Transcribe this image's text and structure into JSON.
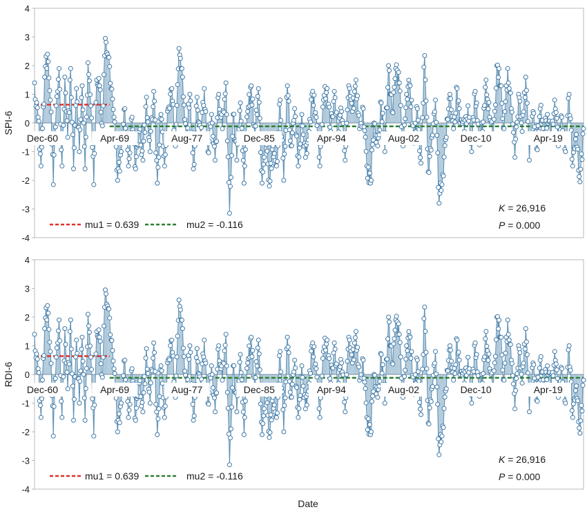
{
  "figure": {
    "xlabel": "Date"
  },
  "colors": {
    "series_line": "#5b8fb3",
    "marker_edge": "#3f78a6",
    "marker_fill": "#ffffff",
    "mu1": "#e0302a",
    "mu2": "#2e7d32",
    "zero_line": "#9aa8b0",
    "frame": "#b8b8b8",
    "text": "#1a1a1a"
  },
  "chart_data": [
    {
      "type": "line",
      "ylabel": "SPI-6",
      "ylim": [
        -4,
        4
      ],
      "yticks": [
        "4",
        "3",
        "2",
        "1",
        "0",
        "-1",
        "-2",
        "-3",
        "-4"
      ],
      "xticks": [
        {
          "label": "Dec-60",
          "month": 11
        },
        {
          "label": "Apr-69",
          "month": 111
        },
        {
          "label": "Aug-77",
          "month": 211
        },
        {
          "label": "Dec-85",
          "month": 311
        },
        {
          "label": "Apr-94",
          "month": 411
        },
        {
          "label": "Aug-02",
          "month": 511
        },
        {
          "label": "Dec-10",
          "month": 611
        },
        {
          "label": "Apr-19",
          "month": 711
        }
      ],
      "x_range_months": [
        0,
        760
      ],
      "mu1": {
        "label": "mu1 = 0.639",
        "value": 0.639,
        "start_month": 0,
        "end_month": 104
      },
      "mu2": {
        "label": "mu2 = -0.116",
        "value": -0.116,
        "start_month": 104,
        "end_month": 760
      },
      "stats": {
        "K_label": "K",
        "K_value": " = 26,916",
        "P_label": "P",
        "P_value": " = 0.000"
      },
      "anchors": [
        [
          0,
          1.4
        ],
        [
          5,
          0.2
        ],
        [
          9,
          -1.5
        ],
        [
          14,
          1.6
        ],
        [
          18,
          2.4
        ],
        [
          22,
          0.8
        ],
        [
          26,
          -2.15
        ],
        [
          30,
          0.6
        ],
        [
          34,
          1.9
        ],
        [
          38,
          -1.5
        ],
        [
          42,
          1.6
        ],
        [
          46,
          -0.5
        ],
        [
          50,
          1.9
        ],
        [
          54,
          -1.6
        ],
        [
          58,
          1.2
        ],
        [
          62,
          -1.0
        ],
        [
          66,
          1.3
        ],
        [
          70,
          -1.6
        ],
        [
          74,
          2.1
        ],
        [
          78,
          0.6
        ],
        [
          82,
          -2.15
        ],
        [
          86,
          1.5
        ],
        [
          90,
          1.3
        ],
        [
          94,
          -0.1
        ],
        [
          98,
          2.95
        ],
        [
          102,
          2.3
        ],
        [
          106,
          1.2
        ],
        [
          110,
          0.2
        ],
        [
          115,
          -2.0
        ],
        [
          120,
          -1.0
        ],
        [
          125,
          0.5
        ],
        [
          130,
          -1.5
        ],
        [
          135,
          0.2
        ],
        [
          140,
          -1.6
        ],
        [
          145,
          -0.3
        ],
        [
          150,
          -1.3
        ],
        [
          155,
          0.9
        ],
        [
          160,
          -1.0
        ],
        [
          165,
          1.1
        ],
        [
          170,
          -2.1
        ],
        [
          175,
          0.3
        ],
        [
          180,
          -1.5
        ],
        [
          185,
          0.5
        ],
        [
          190,
          1.2
        ],
        [
          195,
          -0.8
        ],
        [
          200,
          2.6
        ],
        [
          205,
          1.6
        ],
        [
          210,
          -0.5
        ],
        [
          215,
          1.0
        ],
        [
          220,
          -1.6
        ],
        [
          225,
          0.9
        ],
        [
          230,
          -0.4
        ],
        [
          235,
          1.2
        ],
        [
          240,
          -1.0
        ],
        [
          245,
          0.3
        ],
        [
          250,
          -1.3
        ],
        [
          255,
          1.0
        ],
        [
          260,
          -0.2
        ],
        [
          265,
          1.4
        ],
        [
          270,
          -3.15
        ],
        [
          275,
          0.3
        ],
        [
          280,
          -1.3
        ],
        [
          285,
          0.7
        ],
        [
          290,
          -2.1
        ],
        [
          295,
          0.4
        ],
        [
          300,
          1.3
        ],
        [
          305,
          -0.5
        ],
        [
          310,
          1.2
        ],
        [
          315,
          -2.1
        ],
        [
          320,
          -0.4
        ],
        [
          325,
          -2.2
        ],
        [
          330,
          -0.8
        ],
        [
          335,
          -1.5
        ],
        [
          340,
          0.8
        ],
        [
          345,
          -2.0
        ],
        [
          350,
          1.3
        ],
        [
          355,
          -0.8
        ],
        [
          360,
          0.5
        ],
        [
          365,
          -1.5
        ],
        [
          370,
          0.3
        ],
        [
          375,
          -1.2
        ],
        [
          380,
          -0.3
        ],
        [
          385,
          1.1
        ],
        [
          390,
          0.2
        ],
        [
          395,
          -1.5
        ],
        [
          400,
          0.8
        ],
        [
          405,
          1.2
        ],
        [
          410,
          -0.3
        ],
        [
          415,
          1.1
        ],
        [
          420,
          -0.5
        ],
        [
          425,
          0.4
        ],
        [
          430,
          -1.3
        ],
        [
          435,
          1.3
        ],
        [
          440,
          0.4
        ],
        [
          445,
          1.5
        ],
        [
          450,
          -0.2
        ],
        [
          455,
          0.5
        ],
        [
          460,
          -1.5
        ],
        [
          465,
          -2.1
        ],
        [
          470,
          0.0
        ],
        [
          475,
          -0.8
        ],
        [
          480,
          0.7
        ],
        [
          485,
          -1.0
        ],
        [
          490,
          2.0
        ],
        [
          495,
          0.4
        ],
        [
          500,
          1.9
        ],
        [
          505,
          1.4
        ],
        [
          510,
          -0.8
        ],
        [
          515,
          1.0
        ],
        [
          520,
          1.3
        ],
        [
          525,
          -0.7
        ],
        [
          530,
          0.5
        ],
        [
          535,
          -1.4
        ],
        [
          540,
          2.35
        ],
        [
          545,
          -1.7
        ],
        [
          550,
          -0.5
        ],
        [
          555,
          0.8
        ],
        [
          560,
          -2.8
        ],
        [
          565,
          -1.8
        ],
        [
          570,
          -0.5
        ],
        [
          575,
          1.0
        ],
        [
          580,
          -0.2
        ],
        [
          585,
          1.2
        ],
        [
          590,
          0.1
        ],
        [
          595,
          -0.3
        ],
        [
          600,
          0.6
        ],
        [
          605,
          -1.0
        ],
        [
          610,
          1.1
        ],
        [
          615,
          -0.5
        ],
        [
          620,
          -0.3
        ],
        [
          625,
          1.5
        ],
        [
          630,
          0.2
        ],
        [
          635,
          -0.6
        ],
        [
          640,
          2.0
        ],
        [
          645,
          1.3
        ],
        [
          650,
          -0.2
        ],
        [
          655,
          1.9
        ],
        [
          660,
          0.5
        ],
        [
          665,
          -1.2
        ],
        [
          670,
          1.0
        ],
        [
          675,
          -0.3
        ],
        [
          680,
          1.6
        ],
        [
          685,
          -1.3
        ],
        [
          690,
          0.4
        ],
        [
          695,
          -0.9
        ],
        [
          700,
          0.5
        ],
        [
          705,
          -0.4
        ],
        [
          710,
          0.3
        ],
        [
          715,
          -0.6
        ],
        [
          720,
          0.8
        ],
        [
          725,
          -0.8
        ],
        [
          730,
          0.2
        ],
        [
          735,
          -1.0
        ],
        [
          740,
          1.0
        ],
        [
          745,
          -1.5
        ],
        [
          750,
          -0.4
        ],
        [
          755,
          -2.05
        ],
        [
          760,
          -0.2
        ]
      ]
    },
    {
      "type": "line",
      "ylabel": "RDI-6",
      "ylim": [
        -4,
        4
      ],
      "yticks": [
        "4",
        "3",
        "2",
        "1",
        "0",
        "-1",
        "-2",
        "-3",
        "-4"
      ],
      "xticks": [
        {
          "label": "Dec-60",
          "month": 11
        },
        {
          "label": "Apr-69",
          "month": 111
        },
        {
          "label": "Aug-77",
          "month": 211
        },
        {
          "label": "Dec-85",
          "month": 311
        },
        {
          "label": "Apr-94",
          "month": 411
        },
        {
          "label": "Aug-02",
          "month": 511
        },
        {
          "label": "Dec-10",
          "month": 611
        },
        {
          "label": "Apr-19",
          "month": 711
        }
      ],
      "x_range_months": [
        0,
        760
      ],
      "mu1": {
        "label": "mu1 = 0.639",
        "value": 0.639,
        "start_month": 0,
        "end_month": 104
      },
      "mu2": {
        "label": "mu2 = -0.116",
        "value": -0.116,
        "start_month": 104,
        "end_month": 760
      },
      "stats": {
        "K_label": "K",
        "K_value": " = 26,916",
        "P_label": "P",
        "P_value": " = 0.000"
      },
      "anchors": [
        [
          0,
          1.4
        ],
        [
          5,
          0.2
        ],
        [
          9,
          -1.5
        ],
        [
          14,
          1.6
        ],
        [
          18,
          2.4
        ],
        [
          22,
          0.8
        ],
        [
          26,
          -2.15
        ],
        [
          30,
          0.6
        ],
        [
          34,
          1.9
        ],
        [
          38,
          -1.5
        ],
        [
          42,
          1.6
        ],
        [
          46,
          -0.5
        ],
        [
          50,
          1.9
        ],
        [
          54,
          -1.6
        ],
        [
          58,
          1.2
        ],
        [
          62,
          -1.0
        ],
        [
          66,
          1.3
        ],
        [
          70,
          -1.6
        ],
        [
          74,
          2.1
        ],
        [
          78,
          0.6
        ],
        [
          82,
          -2.15
        ],
        [
          86,
          1.5
        ],
        [
          90,
          1.3
        ],
        [
          94,
          -0.1
        ],
        [
          98,
          2.95
        ],
        [
          102,
          2.3
        ],
        [
          106,
          1.2
        ],
        [
          110,
          0.2
        ],
        [
          115,
          -2.0
        ],
        [
          120,
          -1.0
        ],
        [
          125,
          0.5
        ],
        [
          130,
          -1.5
        ],
        [
          135,
          0.2
        ],
        [
          140,
          -1.6
        ],
        [
          145,
          -0.3
        ],
        [
          150,
          -1.3
        ],
        [
          155,
          0.9
        ],
        [
          160,
          -1.0
        ],
        [
          165,
          1.1
        ],
        [
          170,
          -2.1
        ],
        [
          175,
          0.3
        ],
        [
          180,
          -1.5
        ],
        [
          185,
          0.5
        ],
        [
          190,
          1.2
        ],
        [
          195,
          -0.8
        ],
        [
          200,
          2.6
        ],
        [
          205,
          1.6
        ],
        [
          210,
          -0.5
        ],
        [
          215,
          1.0
        ],
        [
          220,
          -1.6
        ],
        [
          225,
          0.9
        ],
        [
          230,
          -0.4
        ],
        [
          235,
          1.2
        ],
        [
          240,
          -1.0
        ],
        [
          245,
          0.3
        ],
        [
          250,
          -1.3
        ],
        [
          255,
          1.0
        ],
        [
          260,
          -0.2
        ],
        [
          265,
          1.4
        ],
        [
          270,
          -3.15
        ],
        [
          275,
          0.3
        ],
        [
          280,
          -1.3
        ],
        [
          285,
          0.7
        ],
        [
          290,
          -2.1
        ],
        [
          295,
          0.4
        ],
        [
          300,
          1.3
        ],
        [
          305,
          -0.5
        ],
        [
          310,
          1.2
        ],
        [
          315,
          -2.1
        ],
        [
          320,
          -0.4
        ],
        [
          325,
          -2.2
        ],
        [
          330,
          -0.8
        ],
        [
          335,
          -1.5
        ],
        [
          340,
          0.8
        ],
        [
          345,
          -2.0
        ],
        [
          350,
          1.3
        ],
        [
          355,
          -0.8
        ],
        [
          360,
          0.5
        ],
        [
          365,
          -1.5
        ],
        [
          370,
          0.3
        ],
        [
          375,
          -1.2
        ],
        [
          380,
          -0.3
        ],
        [
          385,
          1.1
        ],
        [
          390,
          0.2
        ],
        [
          395,
          -1.5
        ],
        [
          400,
          0.8
        ],
        [
          405,
          1.2
        ],
        [
          410,
          -0.3
        ],
        [
          415,
          1.1
        ],
        [
          420,
          -0.5
        ],
        [
          425,
          0.4
        ],
        [
          430,
          -1.3
        ],
        [
          435,
          1.3
        ],
        [
          440,
          0.4
        ],
        [
          445,
          1.5
        ],
        [
          450,
          -0.2
        ],
        [
          455,
          0.5
        ],
        [
          460,
          -1.5
        ],
        [
          465,
          -2.1
        ],
        [
          470,
          0.0
        ],
        [
          475,
          -0.8
        ],
        [
          480,
          0.7
        ],
        [
          485,
          -1.0
        ],
        [
          490,
          2.0
        ],
        [
          495,
          0.4
        ],
        [
          500,
          1.9
        ],
        [
          505,
          1.4
        ],
        [
          510,
          -0.8
        ],
        [
          515,
          1.0
        ],
        [
          520,
          1.3
        ],
        [
          525,
          -0.7
        ],
        [
          530,
          0.5
        ],
        [
          535,
          -1.4
        ],
        [
          540,
          2.35
        ],
        [
          545,
          -1.7
        ],
        [
          550,
          -0.5
        ],
        [
          555,
          0.8
        ],
        [
          560,
          -2.8
        ],
        [
          565,
          -1.8
        ],
        [
          570,
          -0.5
        ],
        [
          575,
          1.0
        ],
        [
          580,
          -0.2
        ],
        [
          585,
          1.2
        ],
        [
          590,
          0.1
        ],
        [
          595,
          -0.3
        ],
        [
          600,
          0.6
        ],
        [
          605,
          -1.0
        ],
        [
          610,
          1.1
        ],
        [
          615,
          -0.5
        ],
        [
          620,
          -0.3
        ],
        [
          625,
          1.5
        ],
        [
          630,
          0.2
        ],
        [
          635,
          -0.6
        ],
        [
          640,
          2.0
        ],
        [
          645,
          1.3
        ],
        [
          650,
          -0.2
        ],
        [
          655,
          1.9
        ],
        [
          660,
          0.5
        ],
        [
          665,
          -1.2
        ],
        [
          670,
          1.0
        ],
        [
          675,
          -0.3
        ],
        [
          680,
          1.6
        ],
        [
          685,
          -1.3
        ],
        [
          690,
          0.4
        ],
        [
          695,
          -0.9
        ],
        [
          700,
          0.5
        ],
        [
          705,
          -0.4
        ],
        [
          710,
          0.3
        ],
        [
          715,
          -0.6
        ],
        [
          720,
          0.8
        ],
        [
          725,
          -0.8
        ],
        [
          730,
          0.2
        ],
        [
          735,
          -1.0
        ],
        [
          740,
          1.0
        ],
        [
          745,
          -1.5
        ],
        [
          750,
          -0.4
        ],
        [
          755,
          -2.05
        ],
        [
          760,
          -0.2
        ]
      ]
    }
  ]
}
